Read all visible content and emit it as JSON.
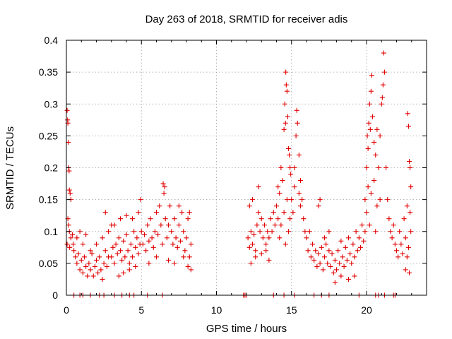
{
  "chart_data": {
    "type": "scatter",
    "title": "Day 263 of 2018, SRMTID for receiver adis",
    "xlabel": "GPS time / hours",
    "ylabel": "SRMTID / TECUs",
    "xlim": [
      0,
      24
    ],
    "ylim": [
      0,
      0.4
    ],
    "xticks": [
      0,
      5,
      10,
      15,
      20
    ],
    "xtick_labels": [
      "0",
      "5",
      "10",
      "15",
      "20"
    ],
    "yticks": [
      0,
      0.05,
      0.1,
      0.15,
      0.2,
      0.25,
      0.3,
      0.35,
      0.4
    ],
    "ytick_labels": [
      "0",
      "0.05",
      "0.1",
      "0.15",
      "0.2",
      "0.25",
      "0.3",
      "0.35",
      "0.4"
    ],
    "grid": true,
    "marker": "+",
    "color": "#e00000",
    "series": [
      {
        "name": "SRMTID",
        "points": [
          [
            0.05,
            0.29
          ],
          [
            0.08,
            0.275
          ],
          [
            0.1,
            0.27
          ],
          [
            0.12,
            0.24
          ],
          [
            0.15,
            0.2
          ],
          [
            0.18,
            0.195
          ],
          [
            0.2,
            0.165
          ],
          [
            0.25,
            0.16
          ],
          [
            0.3,
            0.15
          ],
          [
            0.1,
            0.12
          ],
          [
            0.15,
            0.11
          ],
          [
            0.2,
            0.1
          ],
          [
            0.05,
            0.08
          ],
          [
            0.22,
            0.075
          ],
          [
            0.3,
            0.09
          ],
          [
            0.4,
            0.095
          ],
          [
            0.45,
            0.08
          ],
          [
            0.5,
            0.07
          ],
          [
            0.6,
            0.06
          ],
          [
            0.7,
            0.05
          ],
          [
            0.8,
            0.065
          ],
          [
            0.9,
            0.04
          ],
          [
            1.0,
            0.055
          ],
          [
            1.1,
            0.035
          ],
          [
            1.2,
            0.06
          ],
          [
            1.3,
            0.045
          ],
          [
            1.4,
            0.03
          ],
          [
            1.5,
            0.05
          ],
          [
            1.6,
            0.04
          ],
          [
            1.7,
            0.065
          ],
          [
            1.8,
            0.03
          ],
          [
            1.9,
            0.045
          ],
          [
            2.0,
            0.055
          ],
          [
            2.1,
            0.035
          ],
          [
            2.2,
            0.06
          ],
          [
            2.3,
            0.04
          ],
          [
            2.4,
            0.025
          ],
          [
            2.5,
            0.05
          ],
          [
            2.6,
            0.07
          ],
          [
            2.7,
            0.045
          ],
          [
            2.8,
            0.06
          ],
          [
            0.7,
            0.09
          ],
          [
            0.9,
            0.1
          ],
          [
            1.1,
            0.08
          ],
          [
            1.3,
            0.095
          ],
          [
            1.6,
            0.07
          ],
          [
            2.0,
            0.08
          ],
          [
            2.4,
            0.09
          ],
          [
            2.6,
            0.13
          ],
          [
            2.8,
            0.1
          ],
          [
            3.0,
            0.11
          ],
          [
            3.0,
            0.06
          ],
          [
            3.1,
            0.075
          ],
          [
            3.2,
            0.05
          ],
          [
            3.3,
            0.08
          ],
          [
            3.4,
            0.065
          ],
          [
            3.5,
            0.09
          ],
          [
            3.6,
            0.07
          ],
          [
            3.7,
            0.055
          ],
          [
            3.8,
            0.085
          ],
          [
            3.9,
            0.06
          ],
          [
            4.0,
            0.095
          ],
          [
            4.1,
            0.07
          ],
          [
            4.2,
            0.05
          ],
          [
            4.3,
            0.08
          ],
          [
            4.4,
            0.06
          ],
          [
            4.5,
            0.1
          ],
          [
            4.6,
            0.075
          ],
          [
            4.7,
            0.09
          ],
          [
            4.8,
            0.065
          ],
          [
            4.9,
            0.08
          ],
          [
            3.2,
            0.11
          ],
          [
            3.6,
            0.12
          ],
          [
            4.0,
            0.125
          ],
          [
            4.4,
            0.12
          ],
          [
            4.8,
            0.13
          ],
          [
            3.8,
            0.035
          ],
          [
            4.2,
            0.04
          ],
          [
            3.5,
            0.03
          ],
          [
            4.6,
            0.045
          ],
          [
            5.0,
            0.1
          ],
          [
            5.1,
            0.08
          ],
          [
            5.2,
            0.095
          ],
          [
            5.3,
            0.07
          ],
          [
            5.4,
            0.11
          ],
          [
            5.5,
            0.085
          ],
          [
            5.6,
            0.12
          ],
          [
            5.7,
            0.09
          ],
          [
            5.8,
            0.075
          ],
          [
            5.9,
            0.1
          ],
          [
            6.0,
            0.13
          ],
          [
            6.1,
            0.095
          ],
          [
            6.2,
            0.14
          ],
          [
            6.3,
            0.11
          ],
          [
            6.4,
            0.08
          ],
          [
            6.5,
            0.16
          ],
          [
            6.6,
            0.12
          ],
          [
            6.7,
            0.09
          ],
          [
            6.8,
            0.11
          ],
          [
            6.9,
            0.14
          ],
          [
            4.95,
            0.15
          ],
          [
            6.55,
            0.17
          ],
          [
            6.45,
            0.175
          ],
          [
            5.5,
            0.05
          ],
          [
            6.0,
            0.06
          ],
          [
            6.8,
            0.055
          ],
          [
            7.0,
            0.1
          ],
          [
            7.1,
            0.08
          ],
          [
            7.2,
            0.12
          ],
          [
            7.3,
            0.09
          ],
          [
            7.4,
            0.075
          ],
          [
            7.5,
            0.11
          ],
          [
            7.6,
            0.085
          ],
          [
            7.7,
            0.13
          ],
          [
            7.8,
            0.1
          ],
          [
            7.9,
            0.07
          ],
          [
            8.0,
            0.09
          ],
          [
            8.1,
            0.12
          ],
          [
            8.2,
            0.06
          ],
          [
            8.3,
            0.08
          ],
          [
            7.2,
            0.05
          ],
          [
            7.8,
            0.06
          ],
          [
            8.1,
            0.045
          ],
          [
            8.3,
            0.04
          ],
          [
            7.5,
            0.14
          ],
          [
            8.2,
            0.13
          ],
          [
            12.1,
            0.09
          ],
          [
            12.2,
            0.075
          ],
          [
            12.3,
            0.1
          ],
          [
            12.4,
            0.08
          ],
          [
            12.5,
            0.095
          ],
          [
            12.6,
            0.07
          ],
          [
            12.7,
            0.11
          ],
          [
            12.8,
            0.13
          ],
          [
            12.9,
            0.1
          ],
          [
            13.0,
            0.12
          ],
          [
            13.1,
            0.09
          ],
          [
            13.2,
            0.11
          ],
          [
            13.3,
            0.08
          ],
          [
            13.4,
            0.1
          ],
          [
            13.5,
            0.09
          ],
          [
            13.6,
            0.12
          ],
          [
            13.7,
            0.1
          ],
          [
            13.8,
            0.13
          ],
          [
            13.9,
            0.11
          ],
          [
            12.2,
            0.14
          ],
          [
            12.4,
            0.15
          ],
          [
            12.8,
            0.17
          ],
          [
            12.3,
            0.05
          ],
          [
            12.6,
            0.06
          ],
          [
            13.0,
            0.065
          ],
          [
            13.3,
            0.07
          ],
          [
            13.5,
            0.055
          ],
          [
            14.0,
            0.14
          ],
          [
            14.1,
            0.17
          ],
          [
            14.2,
            0.16
          ],
          [
            14.3,
            0.2
          ],
          [
            14.4,
            0.18
          ],
          [
            14.5,
            0.26
          ],
          [
            14.55,
            0.3
          ],
          [
            14.6,
            0.27
          ],
          [
            14.62,
            0.35
          ],
          [
            14.65,
            0.33
          ],
          [
            14.7,
            0.32
          ],
          [
            14.75,
            0.28
          ],
          [
            14.8,
            0.23
          ],
          [
            14.85,
            0.22
          ],
          [
            14.9,
            0.2
          ],
          [
            14.95,
            0.19
          ],
          [
            14.1,
            0.12
          ],
          [
            14.3,
            0.11
          ],
          [
            14.5,
            0.13
          ],
          [
            14.7,
            0.15
          ],
          [
            14.9,
            0.12
          ],
          [
            14.2,
            0.09
          ],
          [
            14.6,
            0.08
          ],
          [
            14.8,
            0.1
          ],
          [
            15.0,
            0.15
          ],
          [
            15.1,
            0.13
          ],
          [
            15.2,
            0.2
          ],
          [
            15.3,
            0.25
          ],
          [
            15.35,
            0.29
          ],
          [
            15.4,
            0.27
          ],
          [
            15.5,
            0.22
          ],
          [
            15.6,
            0.18
          ],
          [
            15.7,
            0.15
          ],
          [
            15.8,
            0.12
          ],
          [
            15.9,
            0.1
          ],
          [
            15.2,
            0.17
          ],
          [
            15.5,
            0.16
          ],
          [
            15.6,
            0.14
          ],
          [
            16.0,
            0.09
          ],
          [
            16.1,
            0.07
          ],
          [
            16.2,
            0.1
          ],
          [
            16.3,
            0.06
          ],
          [
            16.4,
            0.08
          ],
          [
            16.5,
            0.055
          ],
          [
            16.6,
            0.07
          ],
          [
            16.7,
            0.045
          ],
          [
            16.8,
            0.065
          ],
          [
            16.9,
            0.05
          ],
          [
            17.0,
            0.075
          ],
          [
            17.1,
            0.04
          ],
          [
            17.2,
            0.06
          ],
          [
            17.3,
            0.08
          ],
          [
            17.4,
            0.05
          ],
          [
            17.5,
            0.07
          ],
          [
            16.8,
            0.14
          ],
          [
            16.9,
            0.15
          ],
          [
            17.2,
            0.09
          ],
          [
            17.5,
            0.1
          ],
          [
            17.6,
            0.045
          ],
          [
            17.7,
            0.065
          ],
          [
            17.8,
            0.035
          ],
          [
            17.9,
            0.055
          ],
          [
            18.0,
            0.04
          ],
          [
            18.1,
            0.07
          ],
          [
            18.2,
            0.05
          ],
          [
            18.3,
            0.085
          ],
          [
            18.4,
            0.06
          ],
          [
            18.5,
            0.045
          ],
          [
            18.6,
            0.075
          ],
          [
            18.7,
            0.055
          ],
          [
            18.8,
            0.09
          ],
          [
            18.9,
            0.065
          ],
          [
            19.0,
            0.05
          ],
          [
            19.1,
            0.08
          ],
          [
            19.2,
            0.06
          ],
          [
            19.3,
            0.1
          ],
          [
            19.4,
            0.07
          ],
          [
            19.5,
            0.09
          ],
          [
            19.6,
            0.075
          ],
          [
            19.7,
            0.11
          ],
          [
            19.8,
            0.085
          ],
          [
            19.9,
            0.1
          ],
          [
            17.9,
            0.02
          ],
          [
            18.3,
            0.03
          ],
          [
            18.8,
            0.025
          ],
          [
            19.2,
            0.03
          ],
          [
            19.9,
            0.15
          ],
          [
            20.0,
            0.2
          ],
          [
            20.05,
            0.25
          ],
          [
            20.1,
            0.23
          ],
          [
            20.15,
            0.27
          ],
          [
            20.2,
            0.3
          ],
          [
            20.25,
            0.26
          ],
          [
            20.3,
            0.32
          ],
          [
            20.35,
            0.345
          ],
          [
            20.4,
            0.28
          ],
          [
            20.5,
            0.24
          ],
          [
            20.6,
            0.22
          ],
          [
            20.7,
            0.26
          ],
          [
            20.8,
            0.2
          ],
          [
            20.9,
            0.25
          ],
          [
            20.0,
            0.13
          ],
          [
            20.1,
            0.17
          ],
          [
            20.3,
            0.16
          ],
          [
            20.5,
            0.18
          ],
          [
            20.7,
            0.14
          ],
          [
            20.9,
            0.15
          ],
          [
            20.2,
            0.11
          ],
          [
            20.6,
            0.1
          ],
          [
            21.0,
            0.3
          ],
          [
            21.05,
            0.31
          ],
          [
            21.1,
            0.33
          ],
          [
            21.15,
            0.38
          ],
          [
            21.2,
            0.35
          ],
          [
            21.3,
            0.2
          ],
          [
            21.4,
            0.15
          ],
          [
            21.5,
            0.12
          ],
          [
            21.6,
            0.1
          ],
          [
            21.7,
            0.09
          ],
          [
            21.8,
            0.11
          ],
          [
            21.9,
            0.08
          ],
          [
            22.0,
            0.07
          ],
          [
            22.1,
            0.06
          ],
          [
            22.2,
            0.1
          ],
          [
            22.3,
            0.08
          ],
          [
            22.4,
            0.065
          ],
          [
            22.5,
            0.12
          ],
          [
            22.6,
            0.09
          ],
          [
            22.7,
            0.14
          ],
          [
            22.75,
            0.285
          ],
          [
            22.8,
            0.265
          ],
          [
            22.85,
            0.21
          ],
          [
            22.9,
            0.2
          ],
          [
            22.95,
            0.17
          ],
          [
            22.9,
            0.13
          ],
          [
            22.95,
            0.1
          ],
          [
            22.8,
            0.075
          ],
          [
            22.7,
            0.06
          ],
          [
            22.6,
            0.04
          ],
          [
            22.85,
            0.035
          ],
          [
            0.5,
            0
          ],
          [
            0.9,
            0
          ],
          [
            1.1,
            0
          ],
          [
            1.6,
            0
          ],
          [
            2.2,
            0
          ],
          [
            2.5,
            0
          ],
          [
            3.2,
            0
          ],
          [
            3.7,
            0
          ],
          [
            4.2,
            0
          ],
          [
            4.5,
            0
          ],
          [
            5.4,
            0
          ],
          [
            6.4,
            0
          ],
          [
            11.8,
            0
          ],
          [
            11.9,
            0
          ],
          [
            12.0,
            0
          ],
          [
            13.8,
            0
          ],
          [
            14.5,
            0
          ],
          [
            15.2,
            0
          ],
          [
            16.5,
            0
          ],
          [
            17.0,
            0
          ],
          [
            17.5,
            0
          ],
          [
            19.5,
            0
          ],
          [
            20.6,
            0
          ],
          [
            20.8,
            0
          ],
          [
            21.2,
            0
          ],
          [
            21.8,
            0
          ],
          [
            21.9,
            0
          ]
        ]
      }
    ]
  }
}
